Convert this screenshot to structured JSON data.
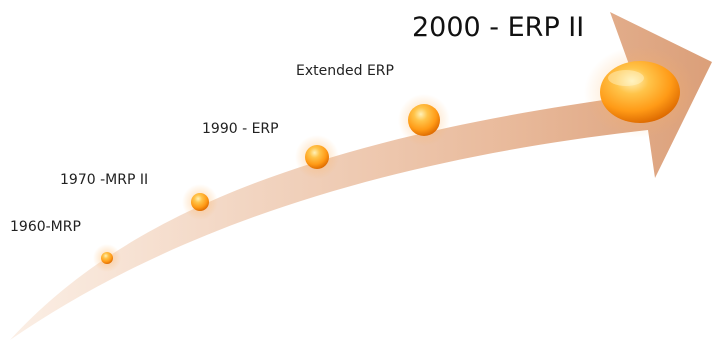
{
  "milestones": [
    {
      "label": "1960-MRP"
    },
    {
      "label": "1970 -MRP II"
    },
    {
      "label": "1990 - ERP"
    },
    {
      "label": "Extended ERP"
    },
    {
      "label": "2000 - ERP II"
    }
  ],
  "colors": {
    "arrow_light": "#f8e4d6",
    "arrow_mid": "#ecc2a6",
    "arrow_dark": "#d99a72",
    "node_highlight": "#ffe08a",
    "node_core": "#ffa21e",
    "node_edge": "#dd6a00"
  }
}
